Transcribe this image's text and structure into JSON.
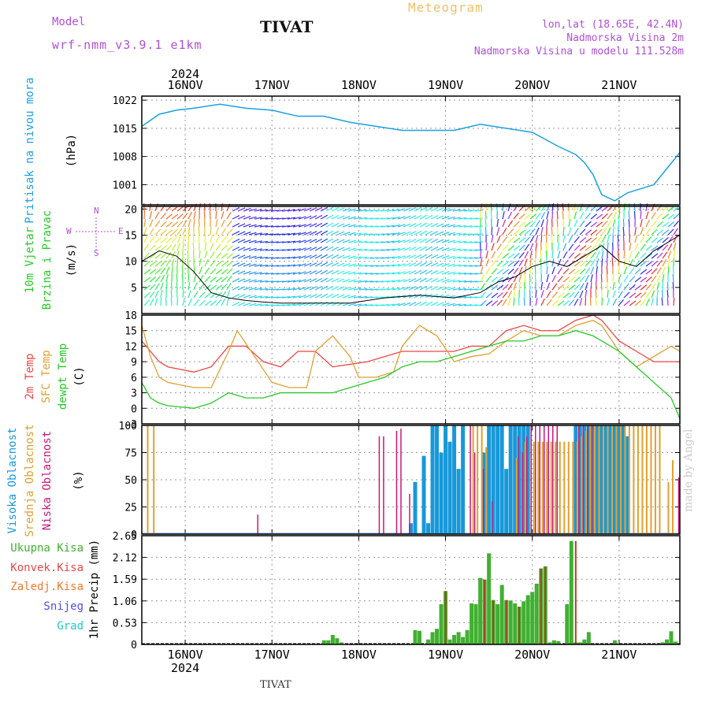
{
  "header": {
    "model_label": "Model",
    "model_name": "wrf-nmm_v3.9.1 e1km",
    "station": "TIVAT",
    "meteogram": "Meteogram",
    "lonlat": "lon,lat (18.65E, 42.4N)",
    "elev": "Nadmorska Visina 2m",
    "elev_model": "Nadmorska Visina u modelu 111.528m",
    "footer_station": "TIVAT",
    "credit": "made by Angel",
    "year_top": "2024",
    "year_bottom": "2024"
  },
  "colors": {
    "pressure": "#1ca0e0",
    "temp2m": "#e84848",
    "sfc": "#e0a030",
    "dewpt": "#28c828",
    "high_cloud": "#1898d8",
    "mid_cloud": "#e0a030",
    "low_cloud": "#c8187a",
    "total_precip": "#40b030",
    "conv_precip": "#e84848",
    "snow": "#5050e0",
    "hail": "#20c8c8",
    "purple_text": "#b050d8",
    "gold_text": "#f0c068"
  },
  "chart_data": [
    {
      "type": "line",
      "panel": "pressure",
      "ylabel_lines": [
        "Pritisak na nivou mora",
        "(hPa)"
      ],
      "ylim": [
        996,
        1023
      ],
      "yticks": [
        1001,
        1008,
        1015,
        1022
      ],
      "xlim": [
        0,
        6.2
      ],
      "xticks": [
        "16NOV",
        "17NOV",
        "18NOV",
        "19NOV",
        "20NOV",
        "21NOV"
      ],
      "x": [
        0,
        0.2,
        0.4,
        0.6,
        0.9,
        1.2,
        1.5,
        1.8,
        2.1,
        2.4,
        2.7,
        3.0,
        3.3,
        3.6,
        3.9,
        4.2,
        4.5,
        4.8,
        5.0,
        5.1,
        5.2,
        5.3,
        5.45,
        5.6,
        5.75,
        5.9,
        6.05,
        6.2
      ],
      "values": [
        1015.5,
        1018.5,
        1019.5,
        1020,
        1021,
        1020,
        1019.5,
        1018,
        1018,
        1016.5,
        1015.5,
        1014.5,
        1014.5,
        1014.5,
        1016,
        1015,
        1014,
        1010.5,
        1008.5,
        1006.5,
        1003.5,
        998.5,
        997,
        999,
        1000,
        1001,
        1005,
        1009
      ]
    },
    {
      "type": "line",
      "panel": "wind",
      "ylabel_lines": [
        "10m Vjetar",
        "Brzina i Pravac",
        "(m/s)"
      ],
      "legend_text": [
        "N",
        "W",
        "E",
        "S"
      ],
      "ylim": [
        0,
        20.5
      ],
      "yticks": [
        5,
        10,
        15,
        20
      ],
      "series": [
        {
          "name": "Brzina",
          "x": [
            0,
            0.2,
            0.4,
            0.6,
            0.8,
            1.0,
            1.2,
            1.4,
            1.6,
            2.0,
            2.4,
            2.8,
            3.2,
            3.6,
            3.9,
            4.1,
            4.3,
            4.5,
            4.7,
            4.9,
            5.1,
            5.3,
            5.5,
            5.7,
            5.9,
            6.1,
            6.2
          ],
          "values": [
            10,
            12,
            11,
            8,
            4,
            3,
            2.5,
            2.2,
            2,
            2,
            2,
            3,
            3.5,
            3,
            4,
            6,
            7,
            9,
            10,
            9,
            11,
            13,
            10,
            9,
            12,
            14,
            15
          ]
        }
      ]
    },
    {
      "type": "line",
      "panel": "temperature",
      "ylabel_lines": [
        "2m Temp",
        "SFC Temp",
        "dewpt Temp",
        "(C)"
      ],
      "ylim": [
        -3,
        18
      ],
      "yticks": [
        -3,
        0,
        3,
        6,
        9,
        12,
        15,
        18
      ],
      "series": [
        {
          "name": "2m Temp",
          "x": [
            0,
            0.1,
            0.2,
            0.3,
            0.6,
            0.8,
            1.0,
            1.2,
            1.4,
            1.6,
            1.8,
            2.0,
            2.2,
            2.4,
            2.6,
            2.8,
            3.0,
            3.2,
            3.4,
            3.6,
            3.8,
            4.0,
            4.2,
            4.4,
            4.6,
            4.8,
            5.0,
            5.2,
            5.3,
            5.5,
            5.7,
            5.9,
            6.1,
            6.2
          ],
          "values": [
            13,
            11,
            9,
            8,
            7,
            8,
            12,
            12,
            9,
            8,
            11,
            11,
            8,
            8.5,
            9,
            10,
            11,
            11,
            11,
            11,
            12,
            12,
            15,
            16,
            15,
            15,
            17,
            18,
            17,
            13,
            11,
            9,
            9,
            9
          ]
        },
        {
          "name": "SFC Temp",
          "x": [
            0,
            0.1,
            0.2,
            0.3,
            0.6,
            0.8,
            1.0,
            1.1,
            1.3,
            1.5,
            1.7,
            1.9,
            2.0,
            2.2,
            2.4,
            2.5,
            2.7,
            2.9,
            3.0,
            3.2,
            3.4,
            3.6,
            3.8,
            4.0,
            4.2,
            4.4,
            4.6,
            4.8,
            5.0,
            5.2,
            5.3,
            5.5,
            5.7,
            5.9,
            6.1,
            6.2
          ],
          "values": [
            16,
            10,
            6,
            5,
            4,
            4,
            11,
            15,
            10,
            5,
            4,
            4,
            11,
            14,
            10,
            6,
            6,
            7,
            12,
            16,
            14,
            9,
            10,
            10.5,
            13,
            15,
            14,
            14,
            16,
            17,
            16,
            11,
            8,
            10,
            12,
            11
          ]
        },
        {
          "name": "dewpt Temp",
          "x": [
            0,
            0.1,
            0.2,
            0.3,
            0.6,
            0.8,
            1.0,
            1.2,
            1.4,
            1.6,
            1.8,
            2.0,
            2.2,
            2.4,
            2.6,
            2.8,
            3.0,
            3.2,
            3.4,
            3.6,
            3.8,
            4.0,
            4.2,
            4.4,
            4.6,
            4.8,
            5.0,
            5.2,
            5.3,
            5.5,
            5.7,
            5.9,
            6.1,
            6.2
          ],
          "values": [
            5,
            2,
            1,
            0.5,
            0,
            1,
            3,
            2,
            2,
            3,
            3,
            3,
            3,
            4,
            5,
            6,
            8,
            9,
            9,
            10,
            11,
            12,
            13,
            13,
            14,
            14,
            15,
            14,
            13,
            11,
            8,
            5,
            2,
            -2
          ]
        }
      ]
    },
    {
      "type": "bar",
      "panel": "clouds",
      "ylabel_lines": [
        "Visoka Oblacnost",
        "Srednja Oblacnost",
        "Niska Oblacnost",
        "(%)"
      ],
      "ylim": [
        0,
        100
      ],
      "yticks": [
        0,
        25,
        50,
        75,
        100
      ],
      "series": [
        {
          "name": "Visoka Oblacnost",
          "x": [
            3.1,
            3.15,
            3.25,
            3.3,
            3.35,
            3.4,
            3.45,
            3.5,
            3.55,
            3.6,
            3.65,
            3.7,
            3.95,
            4.0,
            4.05,
            4.1,
            4.15,
            4.2,
            4.25,
            4.3,
            4.35,
            4.4,
            4.45,
            5.0,
            5.05,
            5.1,
            5.15,
            5.2,
            5.25,
            5.3,
            5.35,
            5.4,
            5.45,
            5.5,
            5.55,
            5.6
          ],
          "values": [
            10,
            48,
            72,
            10,
            100,
            100,
            75,
            100,
            85,
            100,
            60,
            100,
            75,
            100,
            100,
            100,
            100,
            60,
            100,
            100,
            100,
            100,
            100,
            100,
            100,
            100,
            100,
            100,
            100,
            100,
            100,
            100,
            100,
            100,
            100,
            90
          ]
        },
        {
          "name": "Srednja Oblacnost",
          "x": [
            0.05,
            0.12,
            3.8,
            3.85,
            3.9,
            3.95,
            4.3,
            4.4,
            4.5,
            4.55,
            4.6,
            4.65,
            4.7,
            4.75,
            4.8,
            4.85,
            4.9,
            4.95,
            5.0,
            5.05,
            5.1,
            5.15,
            5.2,
            5.25,
            5.3,
            5.35,
            5.4,
            5.45,
            5.5,
            5.55,
            5.6,
            5.65,
            5.7,
            5.75,
            5.8,
            5.85,
            5.9,
            5.95,
            6.05,
            6.1
          ],
          "values": [
            100,
            100,
            100,
            100,
            100,
            80,
            70,
            85,
            85,
            85,
            85,
            85,
            85,
            85,
            85,
            85,
            85,
            85,
            85,
            90,
            95,
            100,
            100,
            100,
            100,
            100,
            100,
            100,
            100,
            100,
            100,
            100,
            100,
            100,
            100,
            100,
            100,
            100,
            48,
            68
          ]
        },
        {
          "name": "Niska Oblacnost",
          "x": [
            1.3,
            2.7,
            2.75,
            2.9,
            2.95,
            3.05,
            3.75,
            3.8,
            3.9,
            4.0,
            4.3,
            4.35,
            4.4,
            4.45,
            4.5,
            4.55,
            4.6,
            4.65,
            4.7,
            4.75,
            5.0,
            5.05,
            5.1,
            5.15,
            6.15
          ],
          "values": [
            18,
            90,
            90,
            95,
            97,
            37,
            100,
            75,
            60,
            30,
            90,
            75,
            90,
            100,
            100,
            100,
            100,
            100,
            100,
            100,
            100,
            100,
            100,
            100,
            52
          ]
        }
      ]
    },
    {
      "type": "bar",
      "panel": "precipitation",
      "ylabel_lines": [
        "Ukupna Kisa",
        "Konvek.Kisa",
        "Zaledj.Kisa",
        "Snijeg",
        "Grad",
        "1hr Precip (mm)"
      ],
      "ylim": [
        0,
        2.65
      ],
      "yticks": [
        0,
        0.53,
        1.06,
        1.59,
        2.12,
        2.65
      ],
      "series": [
        {
          "name": "Ukupna Kisa",
          "x": [
            2.1,
            2.15,
            2.2,
            2.25,
            2.3,
            3.15,
            3.2,
            3.3,
            3.35,
            3.4,
            3.45,
            3.5,
            3.55,
            3.6,
            3.65,
            3.7,
            3.75,
            3.8,
            3.85,
            3.9,
            3.95,
            4.0,
            4.05,
            4.1,
            4.15,
            4.2,
            4.25,
            4.3,
            4.35,
            4.4,
            4.45,
            4.5,
            4.55,
            4.6,
            4.65,
            4.7,
            4.75,
            4.8,
            4.9,
            4.95,
            5.0,
            5.05,
            5.1,
            5.15,
            5.45,
            6.0,
            6.05,
            6.1,
            6.15
          ],
          "values": [
            0.1,
            0.1,
            0.23,
            0.15,
            0.05,
            0.35,
            0.33,
            0.12,
            0.3,
            0.38,
            0.98,
            1.3,
            0.12,
            0.23,
            0.3,
            0.18,
            0.35,
            1.0,
            0.98,
            1.62,
            1.58,
            2.22,
            1.08,
            0.98,
            1.45,
            1.08,
            1.07,
            1.0,
            0.92,
            1.05,
            1.2,
            1.28,
            1.48,
            1.85,
            1.9,
            0.05,
            0.1,
            0.08,
            0.98,
            2.52,
            0.05,
            0.05,
            0.12,
            0.3,
            0.1,
            0.05,
            0.12,
            0.32,
            0.07
          ]
        },
        {
          "name": "Konvek.Kisa",
          "x": [
            3.5,
            3.95,
            4.05,
            4.2,
            4.35,
            4.6,
            4.65,
            5.0
          ],
          "values": [
            1.3,
            1.58,
            1.08,
            1.08,
            0.92,
            1.85,
            1.9,
            2.52
          ]
        }
      ]
    }
  ]
}
